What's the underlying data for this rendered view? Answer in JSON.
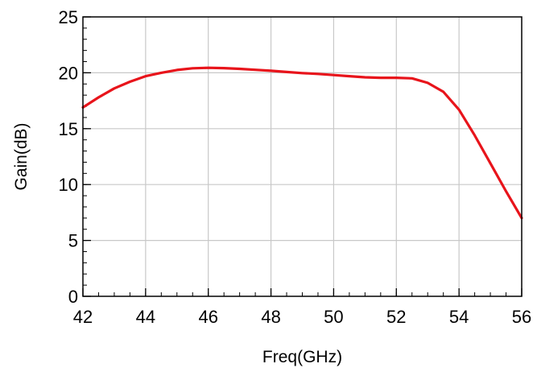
{
  "chart_data": {
    "type": "line",
    "title": "",
    "xlabel": "Freq(GHz)",
    "ylabel": "Gain(dB)",
    "xlim": [
      42,
      56
    ],
    "ylim": [
      0,
      25
    ],
    "xticks": [
      42,
      44,
      46,
      48,
      50,
      52,
      54,
      56
    ],
    "yticks": [
      0,
      5,
      10,
      15,
      20,
      25
    ],
    "x_minor_step": 0.5,
    "y_minor_step": 1,
    "grid": true,
    "legend": "none",
    "colors": {
      "line": "#e8141b",
      "grid": "#c8c8c8",
      "axis": "#000000"
    },
    "series": [
      {
        "x": [
          42,
          42.5,
          43,
          43.5,
          44,
          44.5,
          45,
          45.5,
          46,
          46.5,
          47,
          47.5,
          48,
          48.5,
          49,
          49.5,
          50,
          50.5,
          51,
          51.5,
          52,
          52.5,
          53,
          53.5,
          54,
          54.5,
          55,
          55.5,
          56
        ],
        "values": [
          16.9,
          17.8,
          18.6,
          19.2,
          19.7,
          20.0,
          20.25,
          20.4,
          20.45,
          20.42,
          20.35,
          20.27,
          20.18,
          20.07,
          19.97,
          19.9,
          19.8,
          19.7,
          19.6,
          19.55,
          19.55,
          19.5,
          19.1,
          18.3,
          16.7,
          14.4,
          11.9,
          9.4,
          7.0
        ]
      }
    ]
  }
}
